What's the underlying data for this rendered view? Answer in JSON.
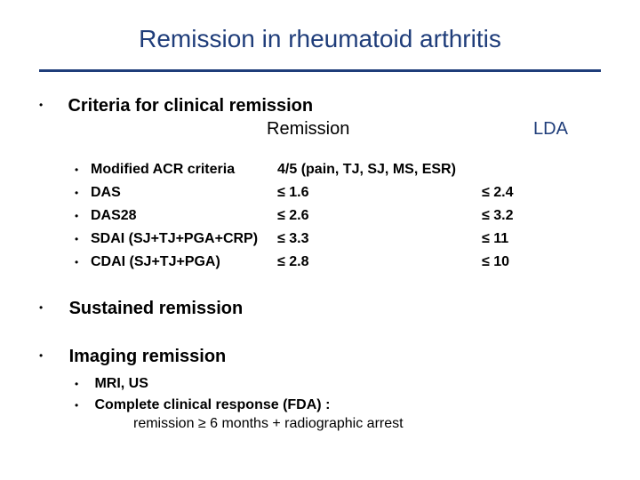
{
  "title": {
    "text": "Remission in rheumatoid arthritis",
    "color": "#1f3d7a"
  },
  "rule_color": "#1f3d7a",
  "section1": {
    "heading": "Criteria for clinical remission",
    "col_remission": "Remission",
    "col_lda": "LDA",
    "lda_color": "#1f3d7a",
    "rows": [
      {
        "name": "Modified ACR criteria",
        "remission": "4/5 (pain, TJ, SJ, MS, ESR)",
        "lda": ""
      },
      {
        "name": "DAS",
        "remission": "≤ 1.6",
        "lda": "≤ 2.4"
      },
      {
        "name": "DAS28",
        "remission": "≤ 2.6",
        "lda": "≤ 3.2"
      },
      {
        "name": "SDAI (SJ+TJ+PGA+CRP)",
        "remission": "≤ 3.3",
        "lda": "≤ 11"
      },
      {
        "name": "CDAI (SJ+TJ+PGA)",
        "remission": "≤ 2.8",
        "lda": "≤ 10"
      }
    ]
  },
  "section2": {
    "heading": "Sustained remission"
  },
  "section3": {
    "heading": "Imaging remission",
    "sub1": "MRI, US",
    "sub2": "Complete clinical response (FDA) :",
    "sub2_cont": "remission ≥ 6 months + radiographic arrest"
  }
}
